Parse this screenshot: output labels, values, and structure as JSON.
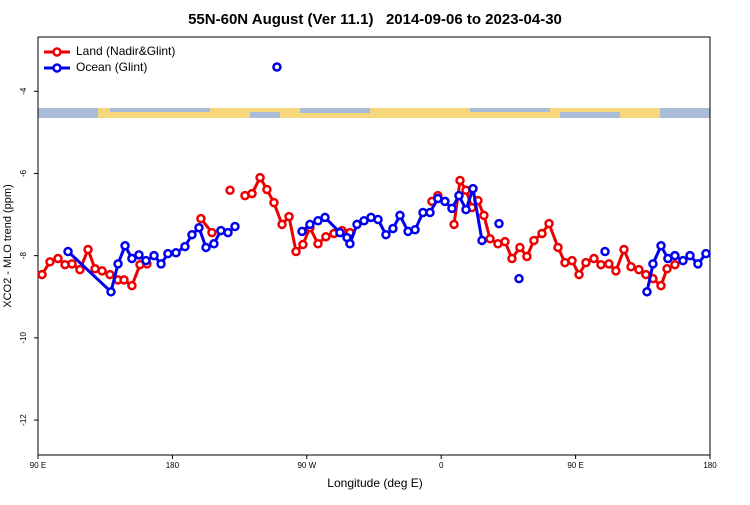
{
  "chart_data": {
    "type": "line",
    "title": "55N-60N August (Ver 11.1)   2014-09-06 to 2023-04-30",
    "xlabel": "Longitude (deg E)",
    "ylabel": "XCO2 - MLO trend (ppm)",
    "xlim": [
      90,
      540
    ],
    "ylim": [
      -12.85,
      -2.68
    ],
    "xticks": [
      {
        "value": 90,
        "label": "90 E"
      },
      180,
      {
        "value": 270,
        "label": "90 W"
      },
      {
        "value": 360,
        "label": "0"
      },
      {
        "value": 450,
        "label": "90 E"
      },
      {
        "value": 540,
        "label": "180"
      }
    ],
    "yticks": [
      -4,
      -6,
      -8,
      -10,
      -12
    ],
    "legend": "top-left",
    "series": [
      {
        "name": "Land (Nadir&Glint)",
        "color": "#ee0000",
        "x": [
          92.7,
          98.0,
          103.4,
          108.1,
          112.8,
          118.1,
          123.5,
          128.2,
          132.9,
          138.2,
          143.6,
          147.6,
          152.9,
          158.3,
          163.0,
          null,
          199.1,
          206.5,
          null,
          218.6,
          null,
          228.6,
          233.3,
          238.7,
          243.3,
          248.0,
          253.4,
          258.1,
          262.8,
          267.4,
          272.1,
          277.5,
          282.8,
          288.2,
          293.6,
          298.9,
          null,
          353.8,
          357.8,
          null,
          368.6,
          372.6,
          376.6,
          380.6,
          384.6,
          388.6,
          392.7,
          398.0,
          402.7,
          407.4,
          412.7,
          417.4,
          422.1,
          427.5,
          432.2,
          438.2,
          442.9,
          447.6,
          452.3,
          456.9,
          462.3,
          467.0,
          472.3,
          477.0,
          482.4,
          487.1,
          492.4,
          497.1,
          501.8,
          507.2,
          511.2,
          516.5
        ],
        "values": [
          -8.46,
          -8.15,
          -8.07,
          -8.22,
          -8.2,
          -8.34,
          -7.85,
          -8.32,
          -8.37,
          -8.46,
          -8.59,
          -8.59,
          -8.73,
          -8.22,
          -8.2,
          null,
          -7.1,
          -7.44,
          null,
          -6.41,
          null,
          -6.54,
          -6.49,
          -6.1,
          -6.39,
          -6.71,
          -7.24,
          -7.05,
          -7.9,
          -7.73,
          -7.32,
          -7.71,
          -7.54,
          -7.46,
          -7.39,
          -7.44,
          null,
          -6.68,
          -6.54,
          null,
          -7.24,
          -6.17,
          -6.41,
          -6.83,
          -6.66,
          -7.02,
          -7.59,
          -7.71,
          -7.66,
          -8.07,
          -7.8,
          -8.02,
          -7.63,
          -7.46,
          -7.22,
          -7.8,
          -8.17,
          -8.12,
          -8.46,
          -8.17,
          -8.07,
          -8.22,
          -8.2,
          -8.37,
          -7.85,
          -8.27,
          -8.34,
          -8.46,
          -8.56,
          -8.73,
          -8.32,
          -8.22
        ]
      },
      {
        "name": "Ocean (Glint)",
        "color": "#0000ee",
        "x": [
          110.1,
          138.9,
          143.6,
          148.3,
          152.9,
          157.6,
          162.3,
          167.7,
          172.4,
          177.0,
          182.4,
          188.4,
          193.1,
          197.8,
          202.5,
          207.8,
          212.5,
          217.2,
          221.9,
          null,
          250.0,
          null,
          266.8,
          272.1,
          277.5,
          282.2,
          292.2,
          296.9,
          298.9,
          303.6,
          308.3,
          313.0,
          317.7,
          323.0,
          327.7,
          332.4,
          337.8,
          342.5,
          347.8,
          352.5,
          357.8,
          362.5,
          367.2,
          371.9,
          376.6,
          381.3,
          387.3,
          null,
          398.7,
          null,
          412.1,
          null,
          469.7,
          null,
          497.8,
          501.8,
          507.2,
          511.8,
          516.5,
          521.9,
          526.6,
          531.9,
          537.3
        ],
        "values": [
          -7.9,
          -8.88,
          -8.2,
          -7.76,
          -8.07,
          -7.98,
          -8.12,
          -8.0,
          -8.2,
          -7.95,
          -7.93,
          -7.78,
          -7.49,
          -7.32,
          -7.8,
          -7.71,
          -7.39,
          -7.44,
          -7.29,
          null,
          -3.41,
          null,
          -7.41,
          -7.24,
          -7.15,
          -7.07,
          -7.44,
          -7.56,
          -7.71,
          -7.24,
          -7.15,
          -7.07,
          -7.12,
          -7.49,
          -7.34,
          -7.02,
          -7.41,
          -7.37,
          -6.95,
          -6.95,
          -6.61,
          -6.68,
          -6.85,
          -6.54,
          -6.88,
          -6.37,
          -7.63,
          null,
          -7.22,
          null,
          -8.56,
          null,
          -7.9,
          null,
          -8.88,
          -8.2,
          -7.76,
          -8.07,
          -8.0,
          -8.12,
          -8.0,
          -8.2,
          -7.95
        ]
      }
    ]
  }
}
